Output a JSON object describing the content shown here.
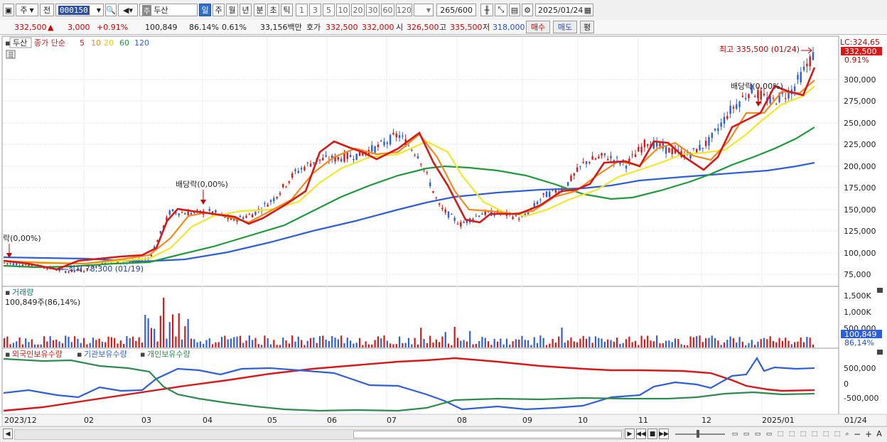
{
  "toolbar": {
    "type_label": "주",
    "prev_label": "전",
    "stock_code": "000150",
    "stock_kind": "주",
    "stock_name": "두산",
    "periods": [
      "일",
      "주",
      "월",
      "년",
      "분",
      "초",
      "틱"
    ],
    "period_selected": "일",
    "nums": [
      "1",
      "3",
      "5",
      "10",
      "20",
      "30",
      "60",
      "120"
    ],
    "count_value": "265",
    "count_total": "/600",
    "date": "2025/01/24"
  },
  "quote": {
    "price": "332,500",
    "arrow": "▲",
    "change": "3,000",
    "change_pct": "+0.91%",
    "volume": "100,849",
    "volume_ratio": "86.14%",
    "turnover": "0.61%",
    "amount": "33,156백만",
    "ask_label": "호가",
    "ask1": "332,500",
    "ask2": "332,000",
    "open_label": "시",
    "open": "326,500",
    "high_label": "고",
    "high": "335,500",
    "low_label": "저",
    "low": "318,000",
    "buy_label": "매수",
    "sell_label": "매도",
    "avg_label": "평"
  },
  "legend": {
    "name": "두산",
    "line": "종가 단순",
    "ma": [
      {
        "label": "5",
        "color": "#d81818"
      },
      {
        "label": "10",
        "color": "#f08a1c"
      },
      {
        "label": "20",
        "color": "#f1e32a"
      },
      {
        "label": "60",
        "color": "#1e9a3a"
      },
      {
        "label": "120",
        "color": "#2f5fd8"
      }
    ]
  },
  "price_panel": {
    "lc": "LC:324,65",
    "current": "332,500",
    "pct": "0.91%",
    "max_note": "최고 335,500 (01/24)",
    "min_note": "최저 78,300 (01/19)",
    "dividend1": "배당락(0,00%)",
    "dividend2": "배당락(0,00%)",
    "dividend3": "락(0,00%)",
    "axis": [
      "300,000",
      "275,000",
      "250,000",
      "225,000",
      "200,000",
      "175,000",
      "150,000",
      "125,000",
      "100,000",
      "75,000"
    ]
  },
  "volume_panel": {
    "title": "거래량",
    "info": "100,849주(86,14%)",
    "axis": [
      "1,500K",
      "1,000K",
      "500,000"
    ],
    "current": "100,849",
    "pct": "86,14%"
  },
  "holding_panel": {
    "series": [
      {
        "label": "외국인보유수량",
        "color": "#d81818"
      },
      {
        "label": "기관보유수량",
        "color": "#2f5fd8"
      },
      {
        "label": "개인보유수량",
        "color": "#2e8b4e"
      }
    ],
    "axis": [
      "500,000",
      "0",
      "-500,000"
    ]
  },
  "x_axis": [
    "2023/12",
    "02",
    "03",
    "04",
    "05",
    "06",
    "07",
    "08",
    "09",
    "10",
    "11",
    "12",
    "2025/01"
  ],
  "x_right": "01/24",
  "chart_data": {
    "type": "line",
    "title": "두산",
    "ylim": [
      70000,
      340000
    ],
    "close": [
      90000,
      88000,
      85000,
      80000,
      82000,
      92000,
      90000,
      95000,
      150000,
      148000,
      150000,
      140000,
      147000,
      165000,
      195000,
      210000,
      212000,
      216000,
      225000,
      240000,
      215000,
      155000,
      135000,
      148000,
      148000,
      142000,
      168000,
      178000,
      208000,
      215000,
      205000,
      232000,
      222000,
      216000,
      232000,
      268000,
      292000,
      278000,
      292000,
      332500
    ],
    "ma60": [
      87000,
      86000,
      86000,
      87000,
      88000,
      90000,
      91000,
      96000,
      108000,
      120000,
      132000,
      140000,
      150000,
      165000,
      178000,
      190000,
      200000,
      204000,
      204000,
      200000,
      196000,
      190000,
      183000,
      177000,
      172000,
      168000,
      168000,
      172000,
      184000,
      190000,
      194000,
      198000,
      204000,
      212000,
      222000,
      236000,
      245000
    ],
    "ma120": [
      97000,
      96000,
      95000,
      93000,
      92000,
      94000,
      97000,
      102000,
      108000,
      116000,
      124000,
      134000,
      144000,
      154000,
      163000,
      170000,
      174000,
      176000,
      177000,
      176000,
      178000,
      180000,
      182000,
      187000,
      191000,
      194000,
      198000,
      204000
    ]
  }
}
